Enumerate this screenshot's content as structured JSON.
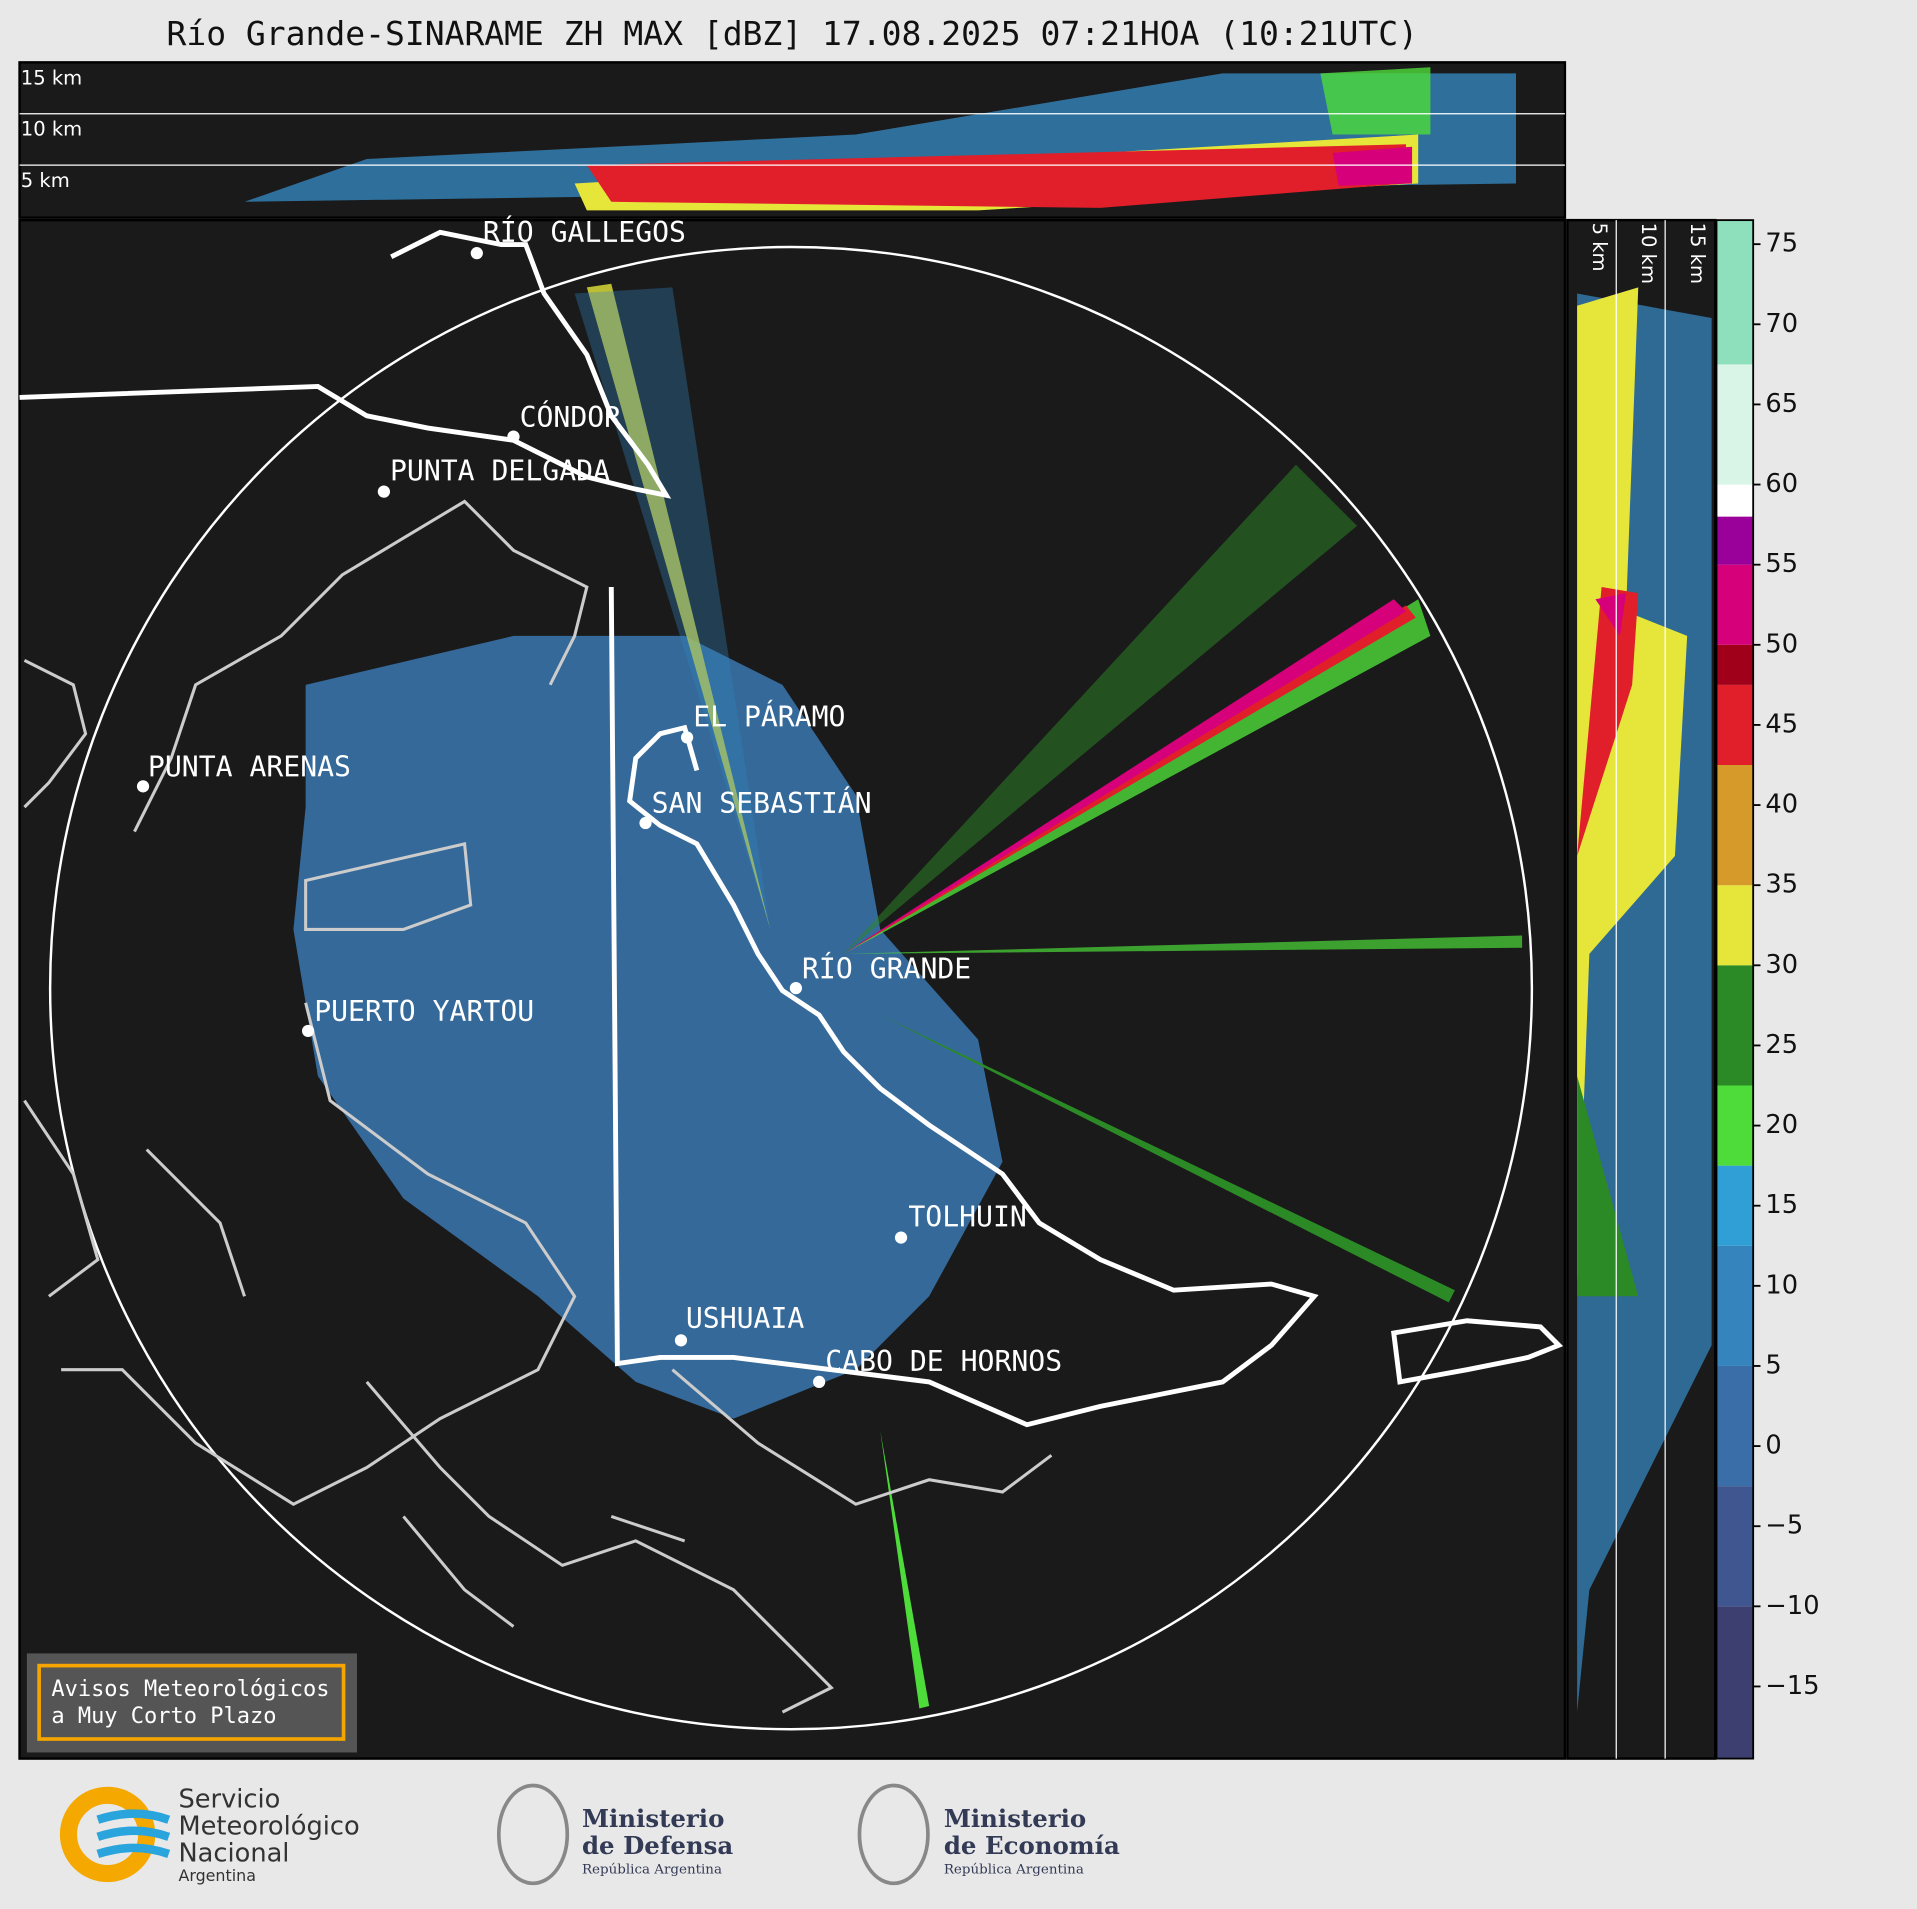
{
  "header": {
    "title": "Río Grande-SINARAME ZH MAX [dBZ] 17.08.2025 07:21HOA (10:21UTC)"
  },
  "top_section": {
    "labels": [
      "15 km",
      "10 km",
      "5 km"
    ]
  },
  "side_section": {
    "labels": [
      "5 km",
      "10 km",
      "15 km"
    ]
  },
  "places": [
    {
      "label": "RÍO GALLEGOS"
    },
    {
      "label": "CÓNDOR"
    },
    {
      "label": "PUNTA DELGADA"
    },
    {
      "label": "EL PÁRAMO"
    },
    {
      "label": "PUNTA ARENAS"
    },
    {
      "label": "SAN SEBASTIÁN"
    },
    {
      "label": "RÍO GRANDE"
    },
    {
      "label": "PUERTO YARTOU"
    },
    {
      "label": "TOLHUIN"
    },
    {
      "label": "USHUAIA"
    },
    {
      "label": "CABO DE HORNOS"
    }
  ],
  "colorbar": {
    "ylim": [
      -19.5,
      76.5
    ],
    "yticks": [
      75,
      70,
      65,
      60,
      55,
      50,
      45,
      40,
      35,
      30,
      25,
      20,
      15,
      10,
      5,
      0,
      {
        "value": -5,
        "label": "−5"
      },
      {
        "value": -10,
        "label": "−10"
      },
      {
        "value": -15,
        "label": "−15"
      }
    ],
    "bands": [
      {
        "from": -19.5,
        "to": -10,
        "color": "#3d3f70"
      },
      {
        "from": -10,
        "to": -2.5,
        "color": "#3f5690"
      },
      {
        "from": -2.5,
        "to": 5,
        "color": "#3a6ea8"
      },
      {
        "from": 5,
        "to": 12.5,
        "color": "#3584bd"
      },
      {
        "from": 12.5,
        "to": 17.5,
        "color": "#2f9fd6"
      },
      {
        "from": 17.5,
        "to": 22.5,
        "color": "#4ddc3a"
      },
      {
        "from": 22.5,
        "to": 30,
        "color": "#2b8a25"
      },
      {
        "from": 30,
        "to": 35,
        "color": "#e6e63a"
      },
      {
        "from": 35,
        "to": 42.5,
        "color": "#d69a2a"
      },
      {
        "from": 42.5,
        "to": 47.5,
        "color": "#e01f2a"
      },
      {
        "from": 47.5,
        "to": 50,
        "color": "#a0001a"
      },
      {
        "from": 50,
        "to": 55,
        "color": "#d6007a"
      },
      {
        "from": 55,
        "to": 58,
        "color": "#9a009a"
      },
      {
        "from": 58,
        "to": 60,
        "color": "#ffffff"
      },
      {
        "from": 60,
        "to": 67.5,
        "color": "#d8f5e8"
      },
      {
        "from": 67.5,
        "to": 76.5,
        "color": "#8ee0bc"
      }
    ]
  },
  "notice": {
    "lines": [
      "Avisos Meteorológicos",
      "a Muy Corto Plazo"
    ]
  },
  "logos": [
    {
      "lines": [
        "Servicio",
        "Meteorológico",
        "Nacional",
        "Argentina"
      ]
    },
    {
      "lines": [
        "Ministerio",
        "de Defensa",
        "República Argentina"
      ]
    },
    {
      "lines": [
        "Ministerio",
        "de Economía",
        "República Argentina"
      ]
    }
  ]
}
